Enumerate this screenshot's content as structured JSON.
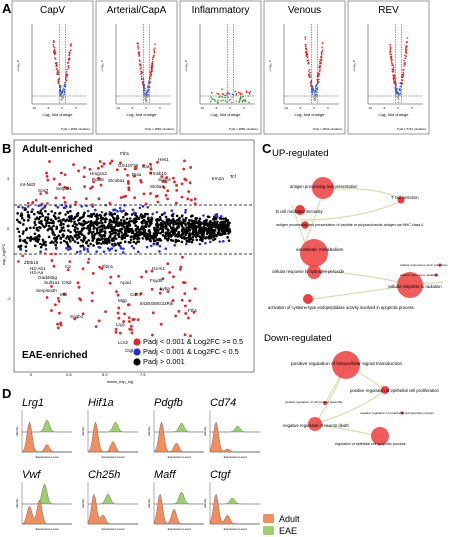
{
  "panels": {
    "A": {
      "letter": "A",
      "volcanoes": [
        {
          "title": "CapV",
          "y_label": "–Log₁₀ P",
          "x_label": "Log₂ fold change",
          "x_ticks": [
            "-10",
            "-5",
            "0",
            "5"
          ],
          "total": "Total = 4835 variables"
        },
        {
          "title": "Arterial/CapA",
          "y_label": "–Log₁₀ P",
          "x_label": "Log₂ fold change",
          "x_ticks": [
            "-10",
            "-5",
            "0",
            "5"
          ],
          "total": "Total = 4882 variables"
        },
        {
          "title": "Inflammatory",
          "y_label": "–Log₁₀ P",
          "x_label": "Log₂ fold change",
          "x_ticks": [
            "-10",
            "-5",
            "0",
            "5"
          ],
          "total": "Total = 4886 variables"
        },
        {
          "title": "Venous",
          "y_label": "–Log₁₀ P",
          "x_label": "Log₂ fold change",
          "x_ticks": [
            "-10",
            "-5",
            "0",
            "5"
          ],
          "total": "Total = 4833 variables"
        },
        {
          "title": "REV",
          "y_label": "–Log₁₀ P",
          "x_label": "Log₂ fold change",
          "x_ticks": [
            "-10",
            "-5",
            "0",
            "5"
          ],
          "total": "Total = 5797 variables"
        }
      ]
    },
    "B": {
      "letter": "B",
      "top_label": "Adult-enriched",
      "bottom_label": "EAE-enriched",
      "legend": [
        {
          "text": "Padj < 0.001 & Log2FC >= 0.5",
          "color": "#e32626"
        },
        {
          "text": "Padj < 0.001 & Log2FC < 0.5",
          "color": "#2b2bd6"
        },
        {
          "text": "Padj > 0.001",
          "color": "#000000"
        }
      ],
      "gene_labels_up": [
        "Fth1",
        "Hes1",
        "Gm10736",
        "Car4",
        "Hmgcs2",
        "Tmsb10",
        "Pdia5",
        "Ppia",
        "Slc40a1",
        "Spock",
        "Irm2a",
        "Tcf",
        "mt-Nd3",
        "Slc6a8",
        "Serpin1",
        "Sox7"
      ],
      "gene_labels_down": [
        "Zbtb16",
        "H2-Ab1",
        "H2-Aa",
        "Cp",
        "Ifitm1",
        "Gadd45g",
        "H2-K1",
        "Sult1a1",
        "Fxyd5",
        "Apod",
        "Ly6a",
        "Serpina3n",
        "Cd74",
        "Mgp",
        "Lrg1",
        "Sogb1",
        "Fth1",
        "8430408G22Rik",
        "Lcn2",
        "Ctgf",
        "Msl",
        "Ctsd"
      ],
      "x_axis_label": "mean_exp_log",
      "y_axis_label": "exp_log2FC",
      "y_ticks": [
        "3",
        "2",
        "1",
        "0",
        "-1",
        "-2"
      ],
      "x_ticks": [
        "0",
        "2.5",
        "5.0",
        "7.5"
      ]
    },
    "C": {
      "letter": "C",
      "up_title": "UP-regulated",
      "up_terms": [
        "antigen processing and presentation",
        "T cell selection",
        "B cell mediated immunity",
        "antigen processing and presentation of peptide or polysaccharide antigen via MHC class II",
        "xenobiotic metabolism",
        "cellular response to hydrogen peroxide",
        "cellular response to toxic substance",
        "cellular response to antibiotic",
        "cellular response to radiation",
        "activation of cysteine-type endopeptidase activity involved in apoptotic process"
      ],
      "down_title": "Down-regulated",
      "down_terms": [
        "positive regulation of intracellular signal transduction",
        "positive regulation of epithelial cell proliferation",
        "positive regulation of cell junction assembly",
        "negative regulation of endothelial cell apoptotic process",
        "negative regulation of neuron death",
        "regulation of epithelial cell apoptotic process"
      ]
    },
    "D": {
      "letter": "D",
      "genes_row1": [
        "Lrg1",
        "Hif1a",
        "Pdgfb",
        "Cd74"
      ],
      "genes_row2": [
        "Vwf",
        "Ch25h",
        "Maff",
        "Ctgf"
      ],
      "y_axis_label": "Identity",
      "x_axis_label": "Expression Level",
      "legend": [
        {
          "text": "Adult",
          "color": "#f28d5e"
        },
        {
          "text": "EAE",
          "color": "#9bd06a"
        }
      ]
    }
  }
}
